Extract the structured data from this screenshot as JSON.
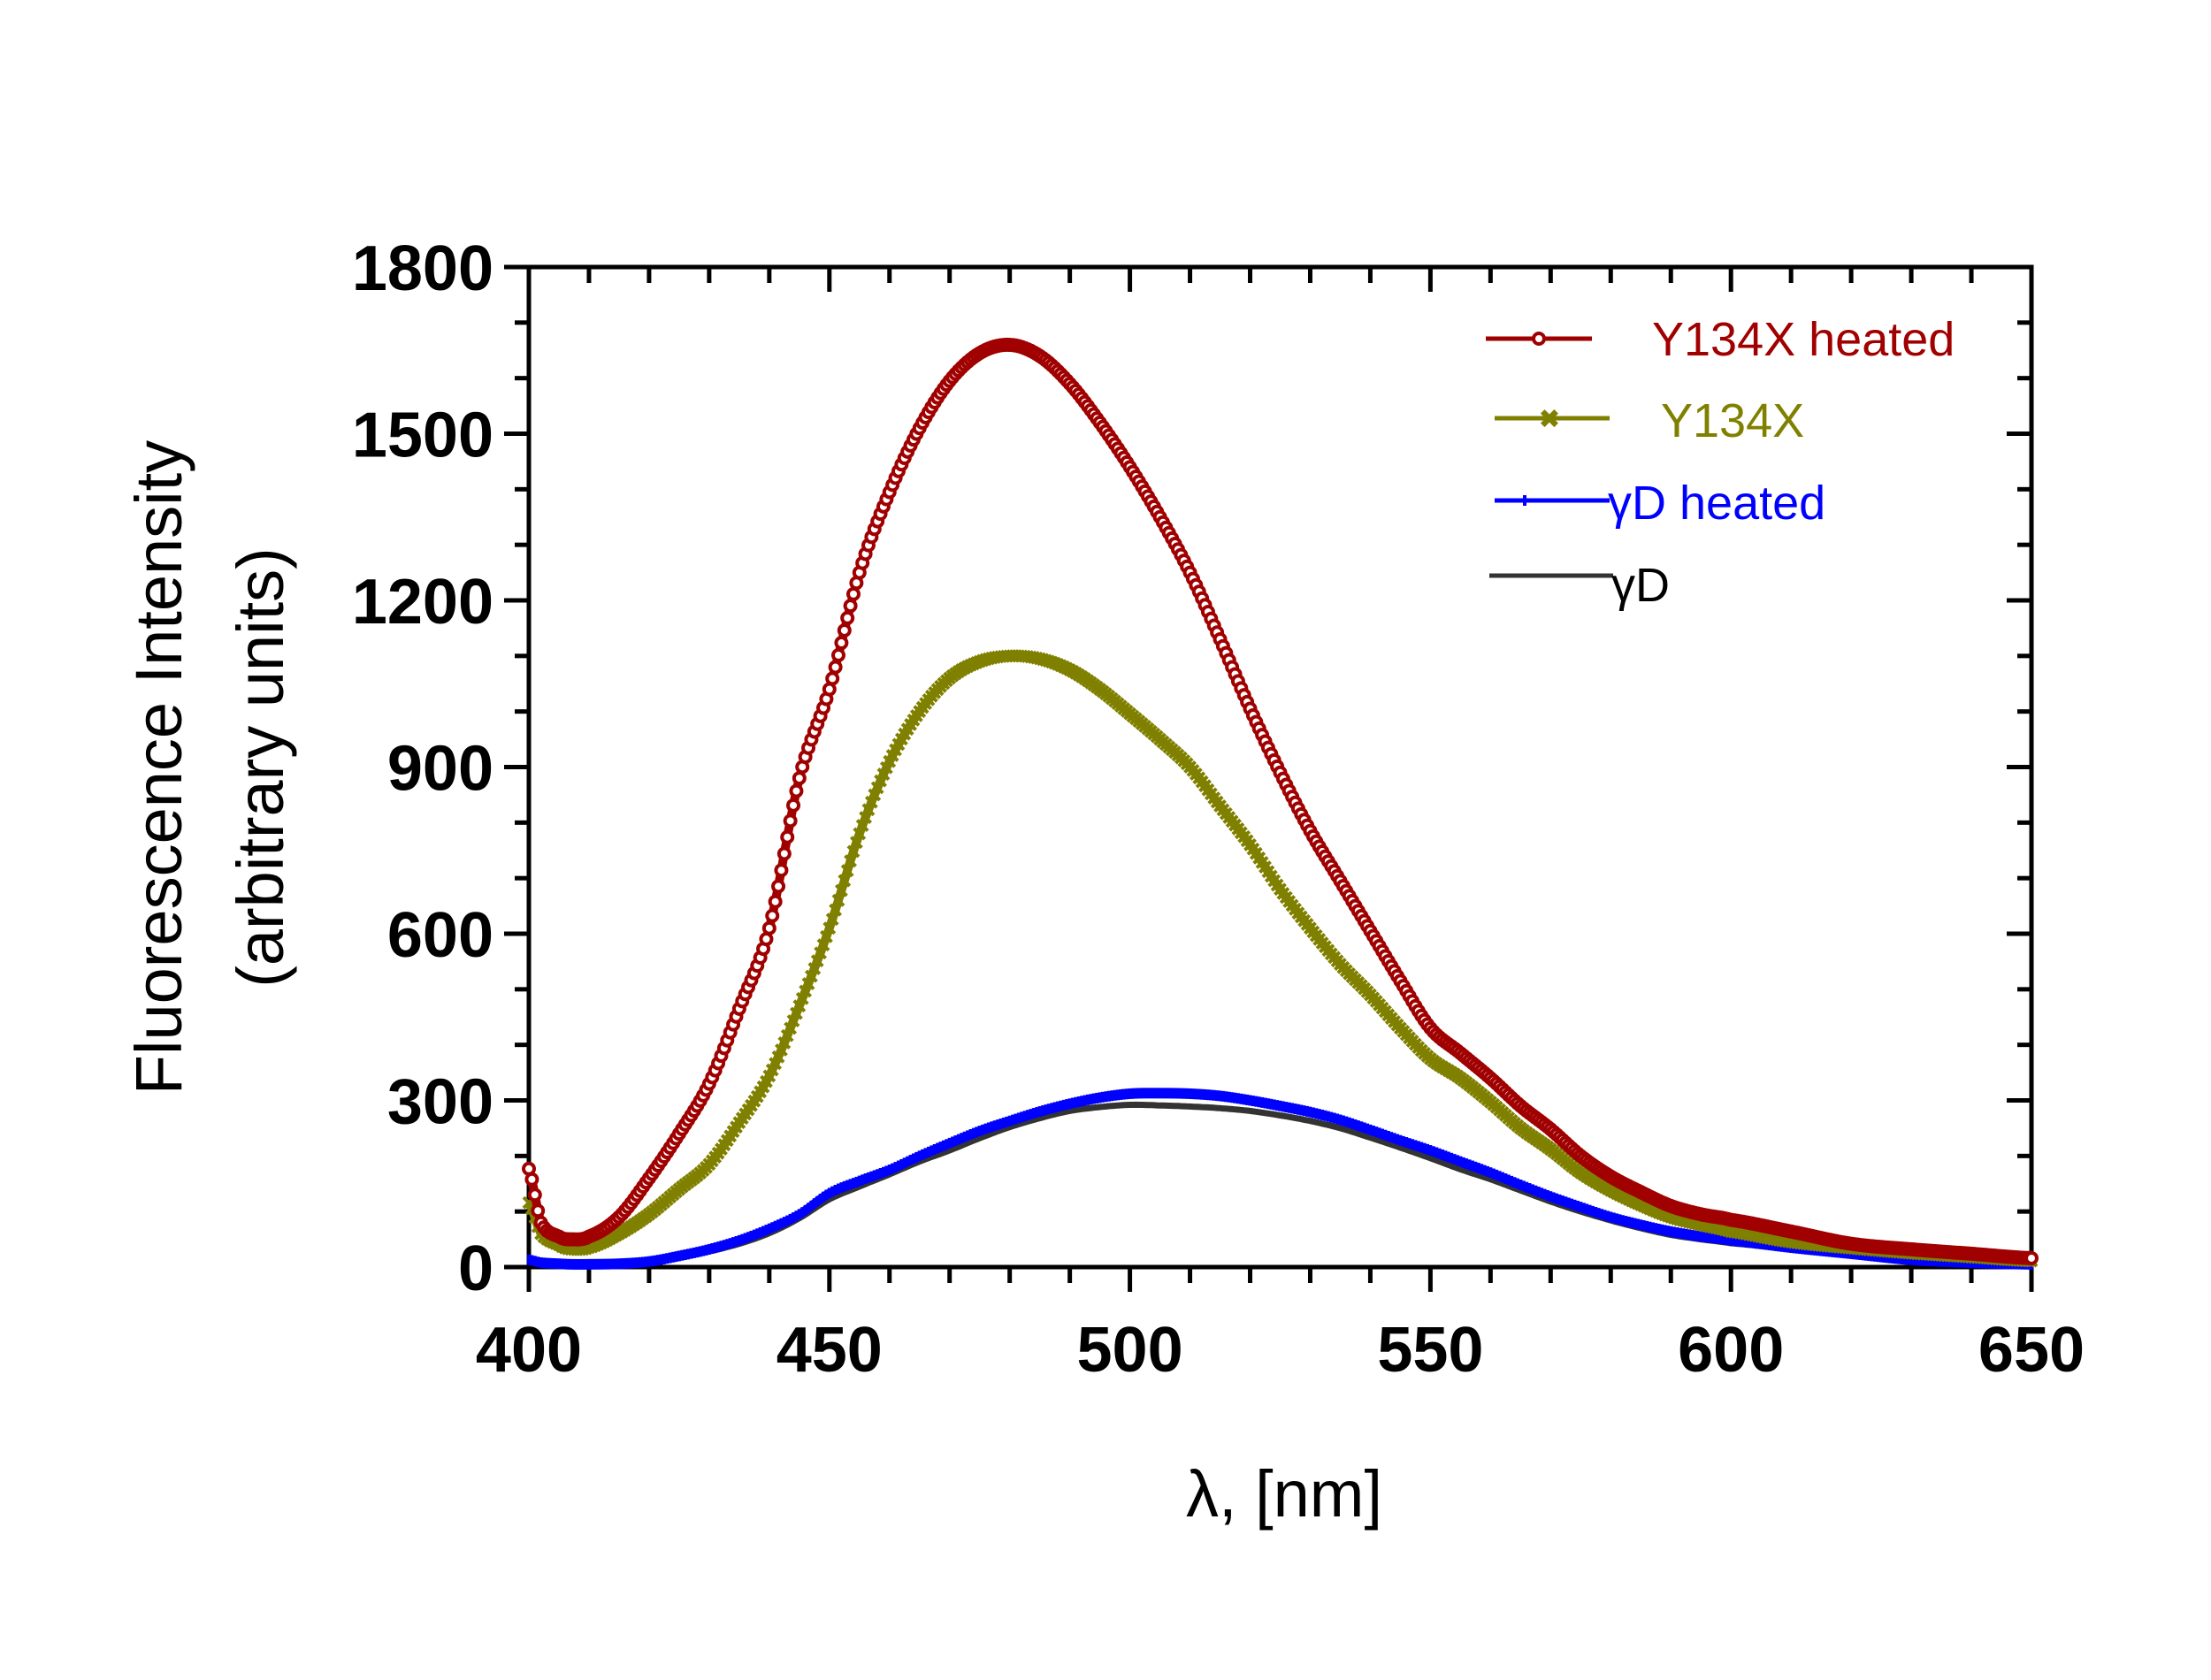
{
  "chart_data": {
    "type": "line",
    "title": "",
    "xlabel": "λ, [nm]",
    "ylabel_line1": "Fluorescence Intensity",
    "ylabel_line2": "(arbitrary units)",
    "xlim": [
      400,
      650
    ],
    "ylim": [
      0,
      1800
    ],
    "x_major_ticks": [
      400,
      450,
      500,
      550,
      600,
      650
    ],
    "x_tick_labels": [
      "400",
      "450",
      "500",
      "550",
      "600",
      "650"
    ],
    "x_minor_step": 10,
    "y_major_ticks": [
      0,
      300,
      600,
      900,
      1200,
      1500,
      1800
    ],
    "y_tick_labels": [
      "0",
      "300",
      "600",
      "900",
      "1200",
      "1500",
      "1800"
    ],
    "y_minor_step": 100,
    "grid": false,
    "legend_position": "top-right",
    "x": [
      400,
      402,
      405,
      407,
      410,
      415,
      420,
      425,
      430,
      435,
      440,
      445,
      450,
      455,
      460,
      465,
      470,
      475,
      480,
      485,
      490,
      495,
      500,
      505,
      510,
      515,
      520,
      525,
      530,
      535,
      540,
      545,
      550,
      555,
      560,
      565,
      570,
      575,
      580,
      585,
      590,
      595,
      600,
      610,
      620,
      630,
      640,
      650
    ],
    "series": [
      {
        "name": "Y134X heated",
        "color": "#a00000",
        "marker": "open-circle",
        "values": [
          177,
          80,
          55,
          50,
          55,
          90,
          160,
          240,
          330,
          465,
          610,
          880,
          1040,
          1250,
          1395,
          1510,
          1595,
          1645,
          1660,
          1640,
          1590,
          1520,
          1440,
          1350,
          1250,
          1130,
          1005,
          890,
          785,
          695,
          605,
          515,
          430,
          385,
          340,
          290,
          248,
          200,
          163,
          135,
          110,
          95,
          85,
          64,
          42,
          32,
          24,
          16
        ]
      },
      {
        "name": "Y134X",
        "color": "#808000",
        "marker": "x-mark",
        "values": [
          116,
          60,
          40,
          32,
          35,
          60,
          95,
          140,
          185,
          260,
          344,
          470,
          610,
          780,
          910,
          1000,
          1060,
          1090,
          1100,
          1095,
          1075,
          1040,
          996,
          950,
          900,
          830,
          760,
          680,
          610,
          545,
          490,
          430,
          375,
          340,
          297,
          250,
          212,
          170,
          138,
          112,
          90,
          76,
          64,
          45,
          34,
          25,
          18,
          11
        ]
      },
      {
        "name": "γD heated",
        "color": "#0000ff",
        "marker": "small-dot",
        "values": [
          13,
          8,
          6,
          5,
          5,
          6,
          10,
          20,
          32,
          48,
          69,
          95,
          133,
          155,
          175,
          200,
          223,
          245,
          263,
          280,
          294,
          305,
          312,
          313,
          312,
          308,
          300,
          290,
          279,
          265,
          247,
          228,
          210,
          190,
          170,
          148,
          127,
          108,
          90,
          76,
          64,
          55,
          48,
          35,
          24,
          13,
          8,
          5
        ]
      },
      {
        "name": "γD",
        "color": "#333333",
        "marker": "none",
        "values": [
          10,
          5,
          3,
          2,
          3,
          5,
          8,
          17,
          28,
          42,
          61,
          88,
          122,
          145,
          167,
          190,
          210,
          232,
          252,
          268,
          281,
          288,
          292,
          291,
          289,
          286,
          281,
          273,
          263,
          250,
          233,
          215,
          196,
          176,
          158,
          138,
          118,
          100,
          84,
          70,
          58,
          50,
          43,
          32,
          21,
          13,
          9,
          6
        ]
      }
    ]
  },
  "legend": {
    "items": [
      {
        "label": "Y134X heated",
        "color": "#a00000"
      },
      {
        "label": "Y134X",
        "color": "#808000"
      },
      {
        "label": "γD heated",
        "color": "#0000ff"
      },
      {
        "label": "γD",
        "color": "#000000",
        "line_color": "#333333"
      }
    ]
  }
}
